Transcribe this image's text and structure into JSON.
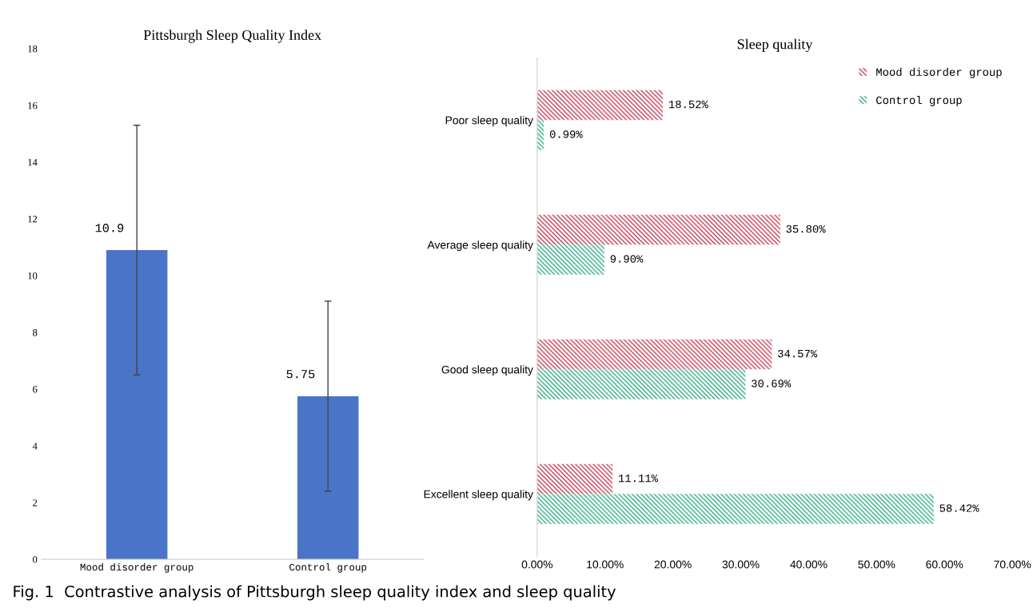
{
  "chart_data": [
    {
      "type": "bar",
      "title": "Pittsburgh Sleep Quality Index",
      "categories": [
        "Mood disorder group",
        "Control group"
      ],
      "values": [
        10.9,
        5.75
      ],
      "errors": [
        4.4,
        3.35
      ],
      "color": "#4a74c8",
      "data_labels": true,
      "ylim": [
        0,
        18
      ],
      "yticks": [
        0,
        2,
        4,
        6,
        8,
        10,
        12,
        14,
        16,
        18
      ],
      "grid": false,
      "annotations": [
        "Fig. 1  Contrastive analysis of Pittsburgh sleep quality index and sleep quality"
      ]
    },
    {
      "type": "bar",
      "orientation": "horizontal",
      "title": "Sleep quality",
      "categories": [
        "Poor sleep quality",
        "Average sleep quality",
        "Good sleep quality",
        "Excellent sleep quality"
      ],
      "series": [
        {
          "name": "Mood disorder group",
          "color": "#c23b52",
          "values": [
            18.52,
            35.8,
            34.57,
            11.11
          ],
          "value_labels": [
            "18.52%",
            "35.80%",
            "34.57%",
            "11.11%"
          ]
        },
        {
          "name": "Control group",
          "color": "#2ea882",
          "values": [
            0.99,
            9.9,
            30.69,
            58.42
          ],
          "value_labels": [
            "0.99%",
            "9.90%",
            "30.69%",
            "58.42%"
          ]
        }
      ],
      "xlim": [
        0,
        70
      ],
      "xticks": [
        {
          "value": 0,
          "label": "0.00%"
        },
        {
          "value": 10,
          "label": "10.00%"
        },
        {
          "value": 20,
          "label": "20.00%"
        },
        {
          "value": 30,
          "label": "30.00%"
        },
        {
          "value": 40,
          "label": "40.00%"
        },
        {
          "value": 50,
          "label": "50.00%"
        },
        {
          "value": 60,
          "label": "60.00%"
        },
        {
          "value": 70,
          "label": "70.00%"
        }
      ],
      "grid": false,
      "legend": "top right"
    }
  ]
}
